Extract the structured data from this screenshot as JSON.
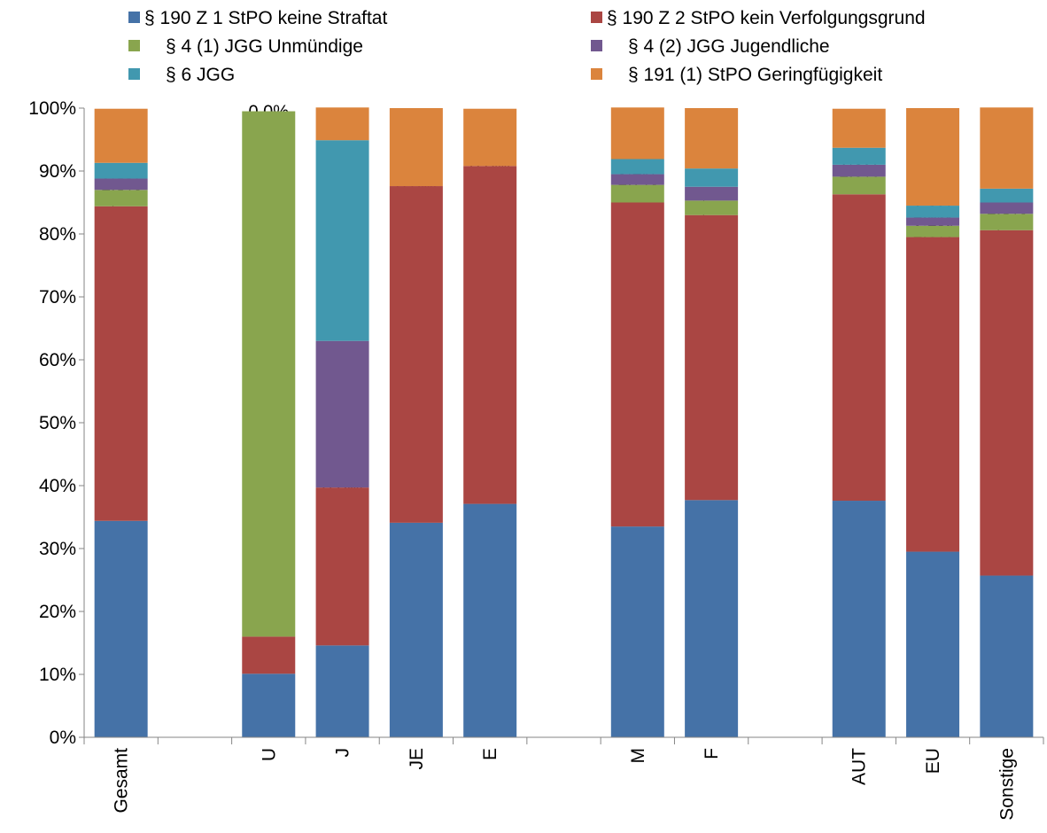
{
  "chart_data": {
    "type": "bar",
    "stacked": true,
    "percent": true,
    "grid": false,
    "legend_position": "top",
    "ylim": [
      0,
      100
    ],
    "yticks": [
      "0%",
      "10%",
      "20%",
      "30%",
      "40%",
      "50%",
      "60%",
      "70%",
      "80%",
      "90%",
      "100%"
    ],
    "categories": [
      "Gesamt",
      "",
      "U",
      "J",
      "JE",
      "E",
      "",
      "M",
      "F",
      "",
      "AUT",
      "EU",
      "Sonstige"
    ],
    "series": [
      {
        "name": "§ 190 Z 1 StPO keine Straftat",
        "color": "#4572a7",
        "values": [
          34.4,
          null,
          10.1,
          14.6,
          34.1,
          37.1,
          null,
          33.5,
          37.7,
          null,
          37.6,
          29.5,
          25.7
        ],
        "labels": [
          "34,4%",
          "",
          "10,1%",
          "14,6%",
          "34,1%",
          "37,1%",
          "",
          "33,5%",
          "37,7%",
          "",
          "37,6%",
          "29,5%",
          "25,7%"
        ]
      },
      {
        "name": "§ 190 Z 2 StPO kein Verfolgungsgrund",
        "color": "#aa4643",
        "values": [
          50.0,
          null,
          5.9,
          25.1,
          53.5,
          53.7,
          null,
          51.5,
          45.3,
          null,
          48.7,
          50.0,
          54.9
        ],
        "labels": [
          "50,0%",
          "",
          "5,9%",
          "25,1%",
          "53,5%",
          "53,7%",
          "",
          "51,5%",
          "45,3%",
          "",
          "48,7%",
          "50,0%",
          "54,9%"
        ]
      },
      {
        "name": "§ 4 (1) JGG Unmündige",
        "color": "#89a54e",
        "values": [
          2.6,
          null,
          83.5,
          0.0,
          0.0,
          0.0,
          null,
          2.8,
          2.3,
          null,
          2.8,
          1.8,
          2.6
        ],
        "labels": [
          "2,6%",
          "",
          "83,5%",
          "0,0%",
          "0,0%",
          "0,0%",
          "",
          "2,8%",
          "2,3%",
          "",
          "2,8%",
          "1,8%",
          "2,6%"
        ]
      },
      {
        "name": "§ 4 (2) JGG Jugendliche",
        "color": "#71588f",
        "values": [
          1.8,
          null,
          0.0,
          23.3,
          0.0,
          0.0,
          null,
          1.7,
          2.2,
          null,
          1.9,
          1.3,
          1.8
        ],
        "labels": [
          "1,8%",
          "",
          "",
          "23,3%",
          "",
          "",
          "",
          "1,7%",
          "2,2%",
          "",
          "1,9%",
          "1,3%",
          "1,8%"
        ]
      },
      {
        "name": "§ 6 JGG",
        "color": "#4198af",
        "values": [
          2.5,
          null,
          0.0,
          31.9,
          0.0,
          0.0,
          null,
          2.4,
          2.9,
          null,
          2.7,
          1.9,
          2.2
        ],
        "labels": [
          "2,5%",
          "",
          "0,0%",
          "31,9%",
          "",
          "",
          "",
          "2,4%",
          "2,9%",
          "",
          "2,7%",
          "1,9%",
          "2,2%"
        ]
      },
      {
        "name": "§ 191 (1) StPO Geringfügigkeit",
        "color": "#db843d",
        "values": [
          8.6,
          null,
          0.0,
          5.2,
          12.4,
          9.1,
          null,
          8.2,
          9.6,
          null,
          6.2,
          15.5,
          12.9
        ],
        "labels": [
          "8,6%",
          "",
          "",
          "5,2%",
          "12,4%",
          "9,1%",
          "",
          "8,2%",
          "9,6%",
          "",
          "6,2%",
          "15,5%",
          "12,9%"
        ]
      }
    ]
  }
}
